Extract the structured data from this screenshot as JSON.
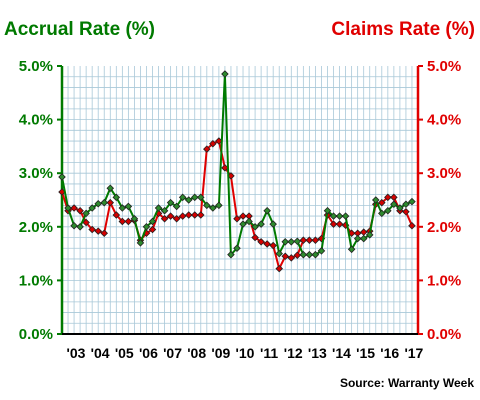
{
  "chart_data": {
    "type": "line",
    "title_left": "Accrual Rate (%)",
    "title_right": "Claims Rate (%)",
    "source": "Source: Warranty Week",
    "ylim": [
      0,
      5
    ],
    "y_ticks": [
      "0.0%",
      "1.0%",
      "2.0%",
      "3.0%",
      "4.0%",
      "5.0%"
    ],
    "y_tick_values": [
      0,
      1,
      2,
      3,
      4,
      5
    ],
    "xlim": [
      2003,
      2017.75
    ],
    "x_tick_labels": [
      "'03",
      "'04",
      "'05",
      "'06",
      "'07",
      "'08",
      "'09",
      "'10",
      "'11",
      "'12",
      "'13",
      "'14",
      "'15",
      "'16",
      "'17"
    ],
    "grid": true,
    "colors": {
      "accrual": "#007a00",
      "accrual_marker": "#2d8a2d",
      "claims": "#e00000",
      "claims_marker": "#d40000",
      "grid": "#a8c8d8"
    },
    "series": [
      {
        "key": "accrual",
        "x": [
          2003.0,
          2003.25,
          2003.5,
          2003.75,
          2004.0,
          2004.25,
          2004.5,
          2004.75,
          2005.0,
          2005.25,
          2005.5,
          2005.75,
          2006.0,
          2006.25,
          2006.5,
          2006.75,
          2007.0,
          2007.25,
          2007.5,
          2007.75,
          2008.0,
          2008.25,
          2008.5,
          2008.75,
          2009.0,
          2009.25,
          2009.5,
          2009.75,
          2010.0,
          2010.25,
          2010.5,
          2010.75,
          2011.0,
          2011.25,
          2011.5,
          2011.75,
          2012.0,
          2012.25,
          2012.5,
          2012.75,
          2013.0,
          2013.25,
          2013.5,
          2013.75,
          2014.0,
          2014.25,
          2014.5,
          2014.75,
          2015.0,
          2015.25,
          2015.5,
          2015.75,
          2016.0,
          2016.25,
          2016.5,
          2016.75,
          2017.0,
          2017.25,
          2017.5
        ],
        "values": [
          2.93,
          2.35,
          2.02,
          2.0,
          2.25,
          2.35,
          2.43,
          2.45,
          2.72,
          2.55,
          2.35,
          2.38,
          2.15,
          1.7,
          2.0,
          2.1,
          2.35,
          2.3,
          2.45,
          2.38,
          2.55,
          2.5,
          2.55,
          2.55,
          2.4,
          2.35,
          2.4,
          4.85,
          1.48,
          1.6,
          2.05,
          2.1,
          2.0,
          2.05,
          2.3,
          2.05,
          1.5,
          1.72,
          1.72,
          1.73,
          1.48,
          1.48,
          1.48,
          1.55,
          2.3,
          2.2,
          2.2,
          2.2,
          1.58,
          1.78,
          1.78,
          1.85,
          2.5,
          2.25,
          2.3,
          2.42,
          2.35,
          2.42,
          2.47
        ]
      },
      {
        "key": "claims",
        "x": [
          2003.0,
          2003.25,
          2003.5,
          2003.75,
          2004.0,
          2004.25,
          2004.5,
          2004.75,
          2005.0,
          2005.25,
          2005.5,
          2005.75,
          2006.0,
          2006.25,
          2006.5,
          2006.75,
          2007.0,
          2007.25,
          2007.5,
          2007.75,
          2008.0,
          2008.25,
          2008.5,
          2008.75,
          2009.0,
          2009.25,
          2009.5,
          2009.75,
          2010.0,
          2010.25,
          2010.5,
          2010.75,
          2011.0,
          2011.25,
          2011.5,
          2011.75,
          2012.0,
          2012.25,
          2012.5,
          2012.75,
          2013.0,
          2013.25,
          2013.5,
          2013.75,
          2014.0,
          2014.25,
          2014.5,
          2014.75,
          2015.0,
          2015.25,
          2015.5,
          2015.75,
          2016.0,
          2016.25,
          2016.5,
          2016.75,
          2017.0,
          2017.25,
          2017.5
        ],
        "values": [
          2.65,
          2.3,
          2.35,
          2.3,
          2.08,
          1.95,
          1.92,
          1.88,
          2.45,
          2.22,
          2.1,
          2.1,
          2.12,
          1.75,
          1.88,
          1.95,
          2.25,
          2.15,
          2.2,
          2.15,
          2.2,
          2.22,
          2.22,
          2.22,
          3.45,
          3.55,
          3.6,
          3.1,
          2.95,
          2.15,
          2.2,
          2.2,
          1.8,
          1.72,
          1.68,
          1.65,
          1.22,
          1.45,
          1.42,
          1.47,
          1.75,
          1.75,
          1.75,
          1.78,
          2.22,
          2.05,
          2.05,
          2.03,
          1.88,
          1.88,
          1.9,
          1.92,
          2.42,
          2.45,
          2.55,
          2.55,
          2.3,
          2.28,
          2.02
        ]
      }
    ]
  }
}
